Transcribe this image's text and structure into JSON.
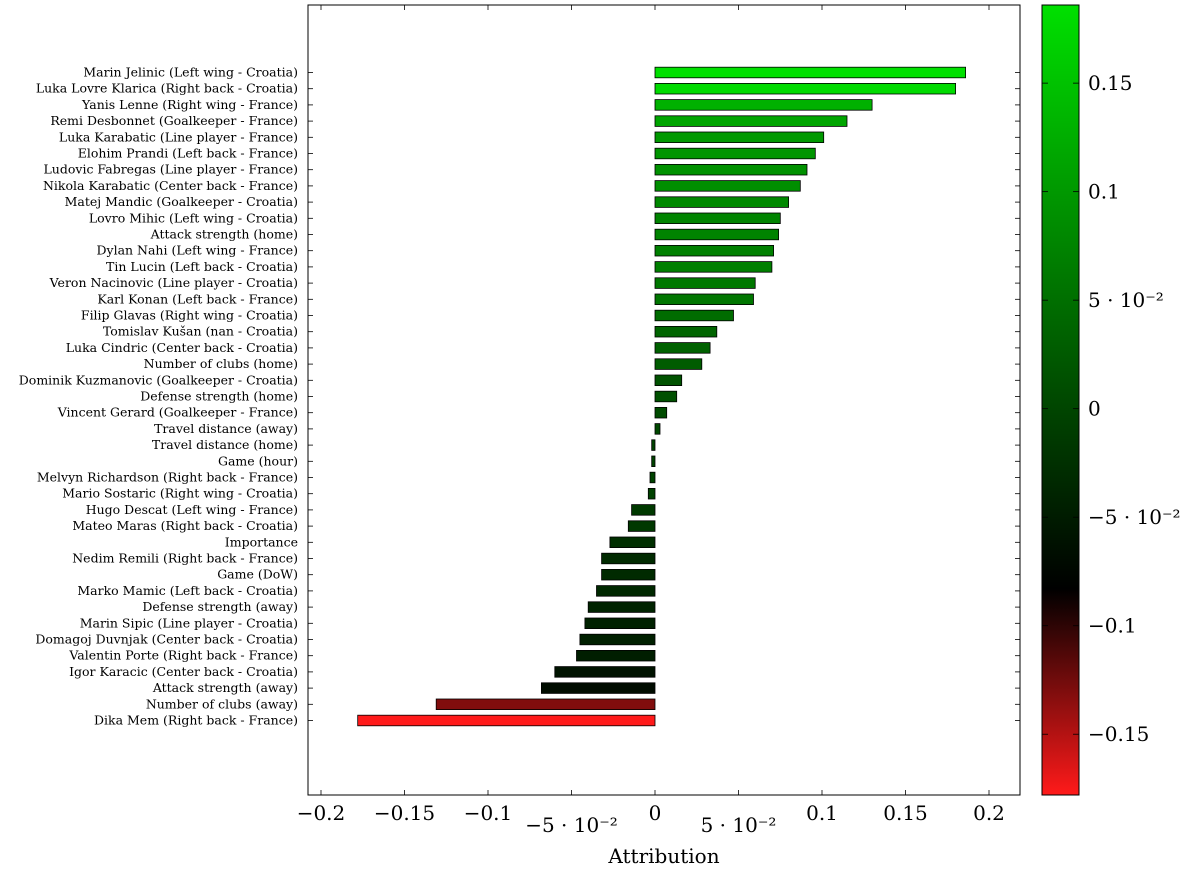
{
  "chart_data": {
    "type": "bar",
    "orientation": "horizontal",
    "xlabel": "Attribution",
    "ylabel": "",
    "xlim": [
      -0.22,
      0.22
    ],
    "x_ticks": [
      -0.2,
      -0.15,
      -0.1,
      -0.05,
      0,
      0.05,
      0.1,
      0.15,
      0.2
    ],
    "x_tick_labels": [
      "−0.2",
      "−0.15",
      "−0.1",
      "−5 · 10⁻²",
      "0",
      "5 · 10⁻²",
      "0.1",
      "0.15",
      "0.2"
    ],
    "grid": false,
    "colorbar": {
      "range": [
        -0.178,
        0.186
      ],
      "ticks": [
        0.15,
        0.1,
        0.05,
        0,
        -0.05,
        -0.1,
        -0.15
      ],
      "tick_labels": [
        "0.15",
        "0.1",
        "5 · 10⁻²",
        "0",
        "−5 · 10⁻²",
        "−0.1",
        "−0.15"
      ],
      "color_max": "#00e000",
      "color_mid": "#000000",
      "color_min": "#ff1a1a"
    },
    "categories": [
      "Marin Jelinic (Left wing - Croatia)",
      "Luka Lovre Klarica (Right back - Croatia)",
      "Yanis Lenne (Right wing - France)",
      "Remi Desbonnet (Goalkeeper - France)",
      "Luka Karabatic (Line player - France)",
      "Elohim Prandi (Left back - France)",
      "Ludovic Fabregas (Line player - France)",
      "Nikola Karabatic (Center back - France)",
      "Matej Mandic (Goalkeeper - Croatia)",
      "Lovro Mihic (Left wing - Croatia)",
      "Attack strength (home)",
      "Dylan Nahi (Left wing - France)",
      "Tin Lucin (Left back - Croatia)",
      "Veron Nacinovic (Line player - Croatia)",
      "Karl Konan (Left back - France)",
      "Filip Glavas (Right wing - Croatia)",
      "Tomislav Kušan (nan - Croatia)",
      "Luka Cindric (Center back - Croatia)",
      "Number of clubs (home)",
      "Dominik Kuzmanovic (Goalkeeper - Croatia)",
      "Defense strength (home)",
      "Vincent Gerard (Goalkeeper - France)",
      "Travel distance (away)",
      "Travel distance (home)",
      "Game (hour)",
      "Melvyn Richardson (Right back - France)",
      "Mario Sostaric (Right wing - Croatia)",
      "Hugo Descat (Left wing - France)",
      "Mateo Maras (Right back - Croatia)",
      "Importance",
      "Nedim Remili (Right back - France)",
      "Game (DoW)",
      "Marko Mamic (Left back - Croatia)",
      "Defense strength (away)",
      "Marin Sipic (Line player - Croatia)",
      "Domagoj Duvnjak (Center back - Croatia)",
      "Valentin Porte (Right back - France)",
      "Igor Karacic (Center back - Croatia)",
      "Attack strength (away)",
      "Number of clubs (away)",
      "Dika Mem (Right back - France)"
    ],
    "values": [
      0.186,
      0.18,
      0.13,
      0.115,
      0.101,
      0.096,
      0.091,
      0.087,
      0.08,
      0.075,
      0.074,
      0.071,
      0.07,
      0.06,
      0.059,
      0.047,
      0.037,
      0.033,
      0.028,
      0.016,
      0.013,
      0.007,
      0.003,
      -0.002,
      -0.002,
      -0.003,
      -0.004,
      -0.014,
      -0.016,
      -0.027,
      -0.032,
      -0.032,
      -0.035,
      -0.04,
      -0.042,
      -0.045,
      -0.047,
      -0.06,
      -0.068,
      -0.131,
      -0.178
    ]
  }
}
